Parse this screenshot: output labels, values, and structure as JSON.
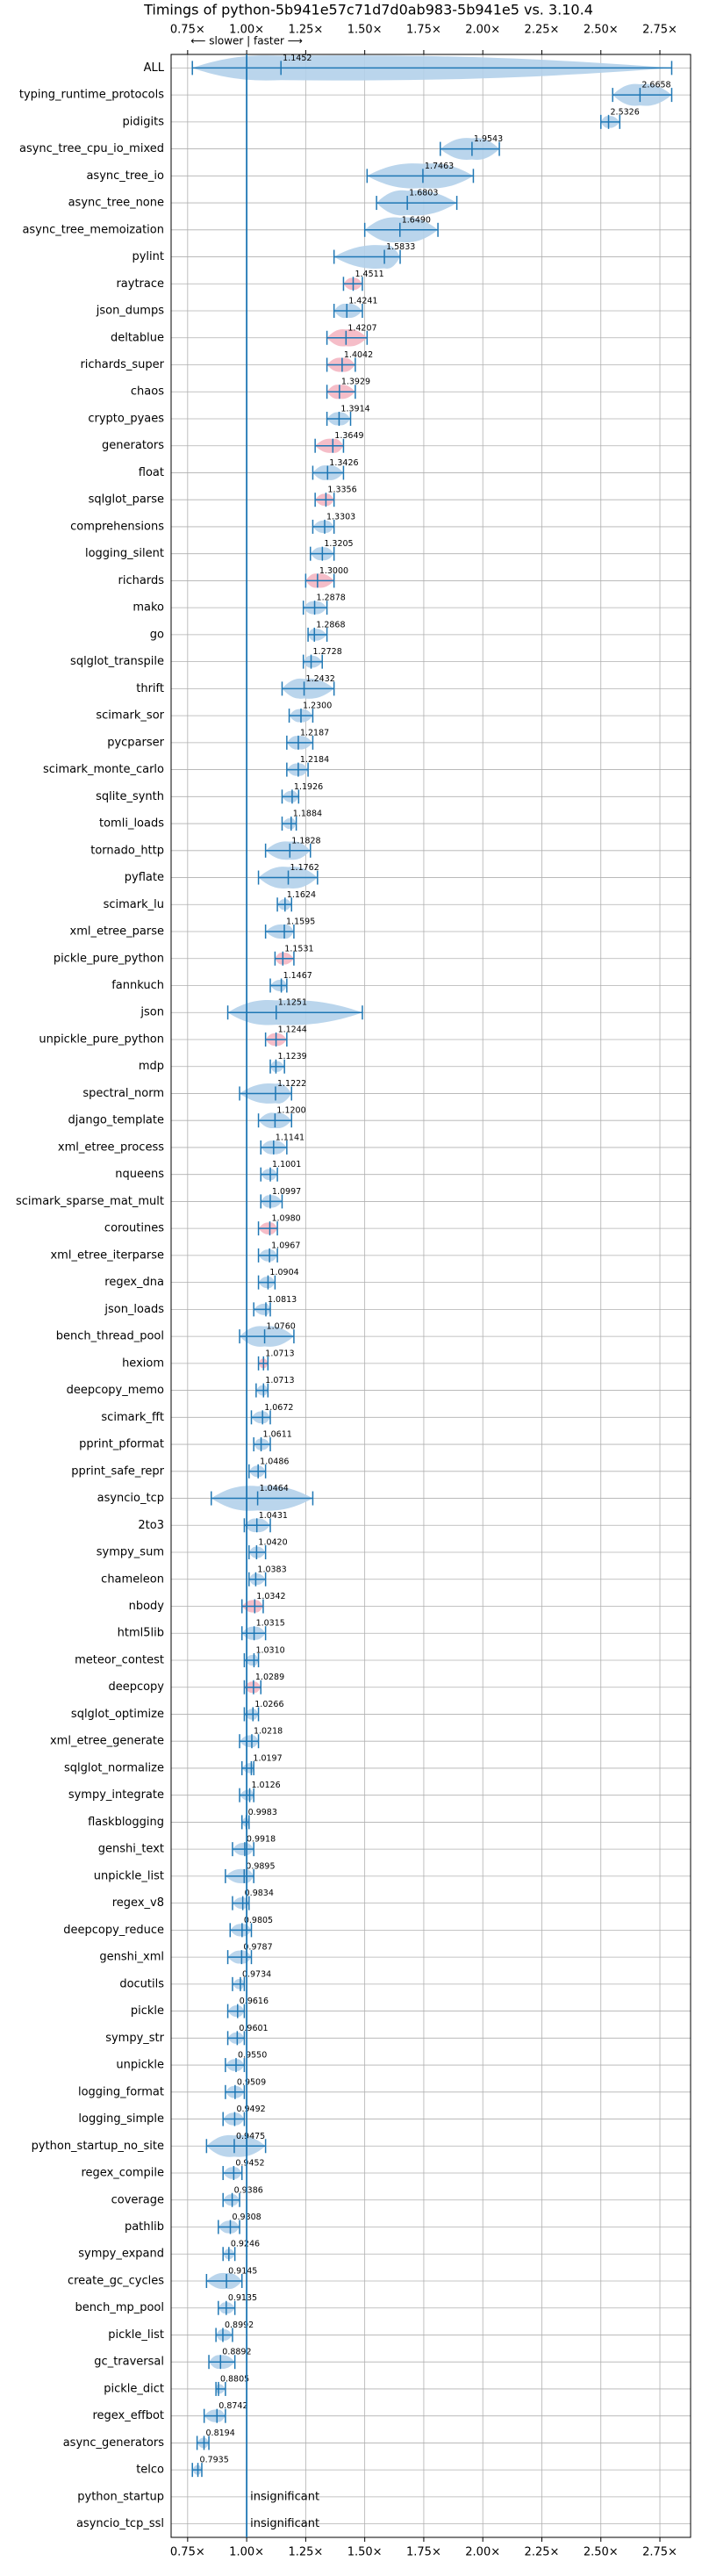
{
  "chart_data": {
    "type": "violin",
    "title": "Timings of python-5b941e57c71d7d0ab983-5b941e5 vs. 3.10.4",
    "annotation": "⟵ slower | faster ⟶",
    "xlim": [
      0.68,
      2.88
    ],
    "xticks": [
      {
        "value": 0.75,
        "label": "0.75×"
      },
      {
        "value": 1.0,
        "label": "1.00×"
      },
      {
        "value": 1.25,
        "label": "1.25×"
      },
      {
        "value": 1.5,
        "label": "1.50×"
      },
      {
        "value": 1.75,
        "label": "1.75×"
      },
      {
        "value": 2.0,
        "label": "2.00×"
      },
      {
        "value": 2.25,
        "label": "2.25×"
      },
      {
        "value": 2.5,
        "label": "2.50×"
      },
      {
        "value": 2.75,
        "label": "2.75×"
      }
    ],
    "reference_line": 1.0,
    "grid": true,
    "color": "#1f77b4",
    "categories": [
      "ALL",
      "typing_runtime_protocols",
      "pidigits",
      "async_tree_cpu_io_mixed",
      "async_tree_io",
      "async_tree_none",
      "async_tree_memoization",
      "pylint",
      "raytrace",
      "json_dumps",
      "deltablue",
      "richards_super",
      "chaos",
      "crypto_pyaes",
      "generators",
      "float",
      "sqlglot_parse",
      "comprehensions",
      "logging_silent",
      "richards",
      "mako",
      "go",
      "sqlglot_transpile",
      "thrift",
      "scimark_sor",
      "pycparser",
      "scimark_monte_carlo",
      "sqlite_synth",
      "tomli_loads",
      "tornado_http",
      "pyflate",
      "scimark_lu",
      "xml_etree_parse",
      "pickle_pure_python",
      "fannkuch",
      "json",
      "unpickle_pure_python",
      "mdp",
      "spectral_norm",
      "django_template",
      "xml_etree_process",
      "nqueens",
      "scimark_sparse_mat_mult",
      "coroutines",
      "xml_etree_iterparse",
      "regex_dna",
      "json_loads",
      "bench_thread_pool",
      "hexiom",
      "deepcopy_memo",
      "scimark_fft",
      "pprint_pformat",
      "pprint_safe_repr",
      "asyncio_tcp",
      "2to3",
      "sympy_sum",
      "chameleon",
      "nbody",
      "html5lib",
      "meteor_contest",
      "deepcopy",
      "sqlglot_optimize",
      "xml_etree_generate",
      "sqlglot_normalize",
      "sympy_integrate",
      "flaskblogging",
      "genshi_text",
      "unpickle_list",
      "regex_v8",
      "deepcopy_reduce",
      "genshi_xml",
      "docutils",
      "pickle",
      "sympy_str",
      "unpickle",
      "logging_format",
      "logging_simple",
      "python_startup_no_site",
      "regex_compile",
      "coverage",
      "pathlib",
      "sympy_expand",
      "create_gc_cycles",
      "bench_mp_pool",
      "pickle_list",
      "gc_traversal",
      "pickle_dict",
      "regex_effbot",
      "async_generators",
      "telco",
      "python_startup",
      "asyncio_tcp_ssl"
    ],
    "values": [
      1.1452,
      2.6658,
      2.5326,
      1.9543,
      1.7463,
      1.6803,
      1.649,
      1.5833,
      1.4511,
      1.4241,
      1.4207,
      1.4042,
      1.3929,
      1.3914,
      1.3649,
      1.3426,
      1.3356,
      1.3303,
      1.3205,
      1.3,
      1.2878,
      1.2868,
      1.2728,
      1.2432,
      1.23,
      1.2187,
      1.2184,
      1.1926,
      1.1884,
      1.1828,
      1.1762,
      1.1624,
      1.1595,
      1.1531,
      1.1467,
      1.1251,
      1.1244,
      1.1239,
      1.1222,
      1.12,
      1.1141,
      1.1001,
      1.0997,
      1.098,
      1.0967,
      1.0904,
      1.0813,
      1.076,
      1.0713,
      1.0713,
      1.0672,
      1.0611,
      1.0486,
      1.0464,
      1.0431,
      1.042,
      1.0383,
      1.0342,
      1.0315,
      1.031,
      1.0289,
      1.0266,
      1.0218,
      1.0197,
      1.0126,
      0.9983,
      0.9918,
      0.9895,
      0.9834,
      0.9805,
      0.9787,
      0.9734,
      0.9616,
      0.9601,
      0.955,
      0.9509,
      0.9492,
      0.9475,
      0.9452,
      0.9386,
      0.9308,
      0.9246,
      0.9145,
      0.9135,
      0.8992,
      0.8892,
      0.8805,
      0.8742,
      0.8194,
      0.7935,
      null,
      null
    ],
    "value_labels": [
      "1.1452",
      "2.6658",
      "2.5326",
      "1.9543",
      "1.7463",
      "1.6803",
      "1.6490",
      "1.5833",
      "1.4511",
      "1.4241",
      "1.4207",
      "1.4042",
      "1.3929",
      "1.3914",
      "1.3649",
      "1.3426",
      "1.3356",
      "1.3303",
      "1.3205",
      "1.3000",
      "1.2878",
      "1.2868",
      "1.2728",
      "1.2432",
      "1.2300",
      "1.2187",
      "1.2184",
      "1.1926",
      "1.1884",
      "1.1828",
      "1.1762",
      "1.1624",
      "1.1595",
      "1.1531",
      "1.1467",
      "1.1251",
      "1.1244",
      "1.1239",
      "1.1222",
      "1.1200",
      "1.1141",
      "1.1001",
      "1.0997",
      "1.0980",
      "1.0967",
      "1.0904",
      "1.0813",
      "1.0760",
      "1.0713",
      "1.0713",
      "1.0672",
      "1.0611",
      "1.0486",
      "1.0464",
      "1.0431",
      "1.0420",
      "1.0383",
      "1.0342",
      "1.0315",
      "1.0310",
      "1.0289",
      "1.0266",
      "1.0218",
      "1.0197",
      "1.0126",
      "0.9983",
      "0.9918",
      "0.9895",
      "0.9834",
      "0.9805",
      "0.9787",
      "0.9734",
      "0.9616",
      "0.9601",
      "0.9550",
      "0.9509",
      "0.9492",
      "0.9475",
      "0.9452",
      "0.9386",
      "0.9308",
      "0.9246",
      "0.9145",
      "0.9135",
      "0.8992",
      "0.8892",
      "0.8805",
      "0.8742",
      "0.8194",
      "0.7935",
      "insignificant",
      "insignificant"
    ],
    "low": [
      0.77,
      2.55,
      2.5,
      1.82,
      1.51,
      1.55,
      1.5,
      1.37,
      1.41,
      1.37,
      1.34,
      1.34,
      1.34,
      1.34,
      1.29,
      1.28,
      1.29,
      1.28,
      1.27,
      1.25,
      1.24,
      1.26,
      1.24,
      1.15,
      1.18,
      1.17,
      1.17,
      1.15,
      1.15,
      1.08,
      1.05,
      1.13,
      1.08,
      1.12,
      1.1,
      0.92,
      1.08,
      1.1,
      0.97,
      1.05,
      1.06,
      1.06,
      1.06,
      1.05,
      1.05,
      1.05,
      1.03,
      0.97,
      1.05,
      1.04,
      1.02,
      1.03,
      1.01,
      0.85,
      0.99,
      1.01,
      1.01,
      0.98,
      0.98,
      0.99,
      0.99,
      0.99,
      0.97,
      0.98,
      0.97,
      0.98,
      0.94,
      0.91,
      0.94,
      0.93,
      0.92,
      0.94,
      0.92,
      0.92,
      0.91,
      0.91,
      0.9,
      0.83,
      0.9,
      0.9,
      0.88,
      0.9,
      0.83,
      0.88,
      0.87,
      0.84,
      0.87,
      0.82,
      0.79,
      0.77,
      null,
      null
    ],
    "high": [
      2.8,
      2.8,
      2.58,
      2.07,
      1.96,
      1.89,
      1.81,
      1.65,
      1.49,
      1.49,
      1.51,
      1.46,
      1.46,
      1.44,
      1.41,
      1.41,
      1.37,
      1.37,
      1.37,
      1.37,
      1.34,
      1.34,
      1.32,
      1.37,
      1.28,
      1.28,
      1.26,
      1.22,
      1.21,
      1.27,
      1.3,
      1.19,
      1.2,
      1.2,
      1.17,
      1.49,
      1.17,
      1.16,
      1.19,
      1.19,
      1.17,
      1.13,
      1.15,
      1.13,
      1.13,
      1.12,
      1.1,
      1.2,
      1.09,
      1.09,
      1.1,
      1.1,
      1.08,
      1.28,
      1.1,
      1.08,
      1.08,
      1.07,
      1.08,
      1.05,
      1.06,
      1.05,
      1.05,
      1.03,
      1.03,
      1.01,
      1.03,
      1.03,
      1.01,
      1.02,
      1.02,
      0.99,
      0.99,
      0.99,
      0.99,
      0.99,
      0.99,
      1.08,
      0.98,
      0.97,
      0.97,
      0.95,
      0.98,
      0.95,
      0.94,
      0.95,
      0.91,
      0.91,
      0.84,
      0.81,
      null,
      null
    ],
    "highlight_color": "#f4b6c2",
    "violin_color": "#b3d0ea",
    "highlighted": [
      false,
      false,
      false,
      false,
      false,
      false,
      false,
      false,
      true,
      false,
      true,
      true,
      true,
      false,
      true,
      false,
      true,
      false,
      false,
      true,
      false,
      false,
      false,
      false,
      false,
      false,
      false,
      false,
      false,
      false,
      false,
      false,
      false,
      true,
      false,
      false,
      true,
      false,
      false,
      false,
      false,
      false,
      false,
      true,
      false,
      false,
      false,
      false,
      true,
      false,
      false,
      false,
      false,
      false,
      false,
      false,
      false,
      true,
      false,
      false,
      true,
      false,
      false,
      false,
      false,
      false,
      false,
      false,
      false,
      false,
      false,
      false,
      false,
      false,
      false,
      false,
      false,
      false,
      false,
      false,
      false,
      false,
      false,
      false,
      false,
      false,
      false,
      false,
      false,
      false,
      false,
      false
    ]
  }
}
